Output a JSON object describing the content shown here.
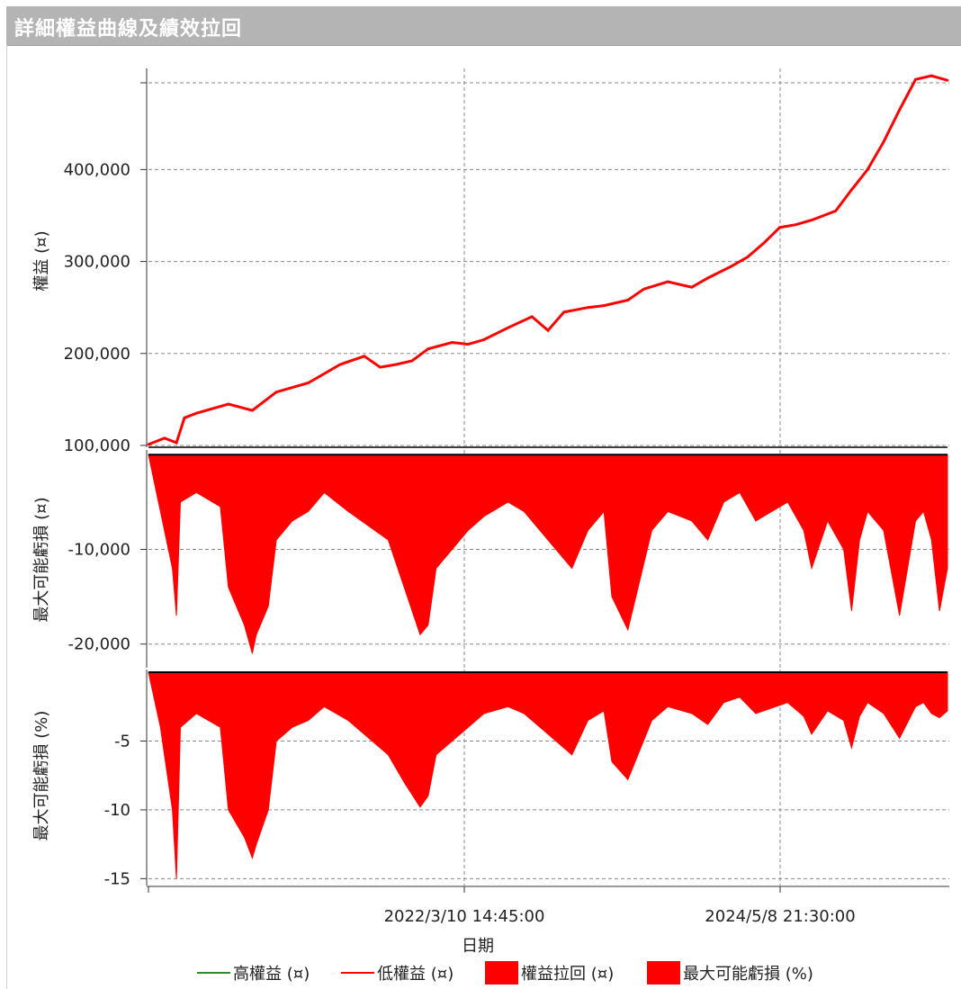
{
  "window": {
    "title": "詳細權益曲線及績效拉回"
  },
  "chart_data": [
    {
      "type": "line",
      "panel": "equity",
      "ylabel": "權益 (¤)",
      "ylim": [
        98000,
        510000
      ],
      "yticks": [
        100000,
        200000,
        300000,
        400000
      ],
      "ytick_labels": [
        "100,000",
        "200,000",
        "300,000",
        "400,000"
      ],
      "x": [
        0,
        0.02,
        0.035,
        0.045,
        0.06,
        0.1,
        0.13,
        0.16,
        0.2,
        0.24,
        0.27,
        0.29,
        0.31,
        0.33,
        0.35,
        0.38,
        0.4,
        0.42,
        0.45,
        0.48,
        0.5,
        0.52,
        0.55,
        0.57,
        0.6,
        0.62,
        0.65,
        0.68,
        0.7,
        0.73,
        0.75,
        0.77,
        0.79,
        0.81,
        0.83,
        0.86,
        0.88,
        0.9,
        0.92,
        0.94,
        0.96,
        0.98,
        1.0
      ],
      "y": [
        101000,
        108000,
        103000,
        130000,
        135000,
        145000,
        138000,
        158000,
        168000,
        188000,
        197000,
        185000,
        188000,
        192000,
        205000,
        212000,
        210000,
        215000,
        228000,
        240000,
        225000,
        245000,
        250000,
        252000,
        258000,
        270000,
        278000,
        272000,
        282000,
        295000,
        305000,
        320000,
        337000,
        340000,
        345000,
        355000,
        378000,
        400000,
        430000,
        465000,
        498000,
        502000,
        497000
      ],
      "series": [
        {
          "name": "高權益 (¤)",
          "color": "#2e8b2e"
        },
        {
          "name": "低權益 (¤)",
          "color": "#ff0000"
        }
      ]
    },
    {
      "type": "area",
      "panel": "drawdown-amount",
      "ylabel": "最大可能虧損 (¤)",
      "ylim": [
        -22500,
        500
      ],
      "yticks": [
        -10000,
        -20000
      ],
      "ytick_labels": [
        "-10,000",
        "-20,000"
      ],
      "x": [
        0,
        0.015,
        0.03,
        0.035,
        0.04,
        0.06,
        0.09,
        0.1,
        0.12,
        0.13,
        0.135,
        0.15,
        0.16,
        0.18,
        0.2,
        0.22,
        0.25,
        0.3,
        0.32,
        0.34,
        0.35,
        0.36,
        0.38,
        0.4,
        0.42,
        0.45,
        0.47,
        0.5,
        0.53,
        0.55,
        0.57,
        0.58,
        0.6,
        0.63,
        0.65,
        0.68,
        0.7,
        0.72,
        0.74,
        0.76,
        0.78,
        0.8,
        0.82,
        0.83,
        0.85,
        0.87,
        0.88,
        0.89,
        0.9,
        0.92,
        0.94,
        0.96,
        0.97,
        0.98,
        0.99,
        1.0
      ],
      "values": [
        0,
        -6000,
        -12000,
        -17000,
        -5000,
        -4000,
        -5500,
        -14000,
        -18000,
        -21000,
        -19000,
        -16000,
        -9000,
        -7000,
        -6000,
        -4000,
        -6000,
        -9000,
        -14000,
        -19000,
        -18000,
        -12000,
        -10000,
        -8000,
        -6500,
        -5000,
        -6000,
        -9000,
        -12000,
        -8000,
        -6000,
        -15000,
        -18500,
        -8000,
        -6000,
        -7000,
        -9000,
        -5000,
        -4000,
        -7000,
        -6000,
        -5000,
        -8000,
        -12000,
        -7000,
        -10000,
        -16500,
        -9000,
        -6000,
        -8000,
        -17000,
        -7000,
        -6000,
        -9000,
        -16500,
        -12000
      ],
      "color": "#ff0000",
      "legend": "權益拉回 (¤)"
    },
    {
      "type": "area",
      "panel": "drawdown-percent",
      "ylabel": "最大可能虧損 (%)",
      "ylim": [
        -15.5,
        0.2
      ],
      "yticks": [
        -5,
        -10,
        -15
      ],
      "ytick_labels": [
        "-5",
        "-10",
        "-15"
      ],
      "x": [
        0,
        0.015,
        0.03,
        0.035,
        0.04,
        0.06,
        0.09,
        0.1,
        0.12,
        0.13,
        0.135,
        0.15,
        0.16,
        0.18,
        0.2,
        0.22,
        0.25,
        0.3,
        0.32,
        0.34,
        0.35,
        0.36,
        0.38,
        0.4,
        0.42,
        0.45,
        0.47,
        0.5,
        0.53,
        0.55,
        0.57,
        0.58,
        0.6,
        0.63,
        0.65,
        0.68,
        0.7,
        0.72,
        0.74,
        0.76,
        0.78,
        0.8,
        0.82,
        0.83,
        0.85,
        0.87,
        0.88,
        0.89,
        0.9,
        0.92,
        0.94,
        0.96,
        0.97,
        0.98,
        0.99,
        1.0
      ],
      "values": [
        0,
        -4,
        -10,
        -15,
        -4,
        -3,
        -4,
        -10,
        -12,
        -13.5,
        -12.5,
        -10,
        -5,
        -4,
        -3.5,
        -2.5,
        -3.5,
        -6,
        -8,
        -9.8,
        -9,
        -6,
        -5,
        -4,
        -3,
        -2.5,
        -3,
        -4.5,
        -6,
        -3.5,
        -2.8,
        -6.5,
        -7.8,
        -3.5,
        -2.5,
        -3,
        -3.8,
        -2.2,
        -1.8,
        -3,
        -2.6,
        -2.2,
        -3.2,
        -4.5,
        -2.8,
        -3.5,
        -5.5,
        -3.2,
        -2.2,
        -3,
        -4.8,
        -2.5,
        -2.2,
        -3,
        -3.3,
        -2.8
      ],
      "color": "#ff0000",
      "legend": "最大可能虧損 (%)"
    }
  ],
  "xaxis": {
    "title": "日期",
    "tick_labels": [
      "2022/3/10 14:45:00",
      "2024/5/8 21:30:00"
    ]
  },
  "legend": {
    "high_equity": "高權益 (¤)",
    "low_equity": "低權益 (¤)",
    "equity_drawdown": "權益拉回 (¤)",
    "max_drawdown_pct": "最大可能虧損 (%)",
    "colors": {
      "green": "#2e8b2e",
      "red": "#ff0000"
    }
  }
}
